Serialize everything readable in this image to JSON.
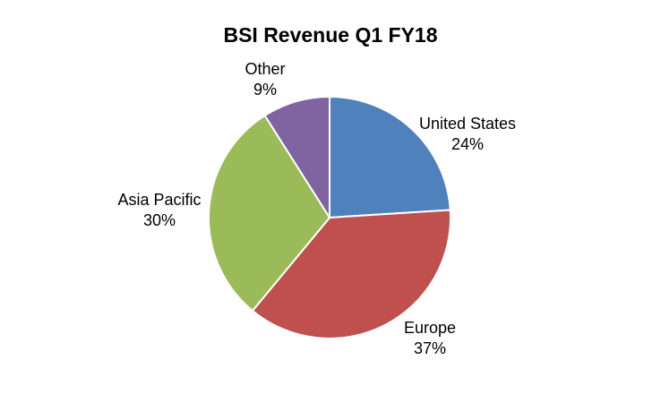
{
  "chart_data": {
    "type": "pie",
    "title": "BSI Revenue Q1 FY18",
    "slices": [
      {
        "label": "United States",
        "value": 24,
        "display": "24%",
        "color": "#4F81BD"
      },
      {
        "label": "Europe",
        "value": 37,
        "display": "37%",
        "color": "#C0504D"
      },
      {
        "label": "Asia Pacific",
        "value": 30,
        "display": "30%",
        "color": "#9BBB59"
      },
      {
        "label": "Other",
        "value": 9,
        "display": "9%",
        "color": "#8064A2"
      }
    ]
  }
}
